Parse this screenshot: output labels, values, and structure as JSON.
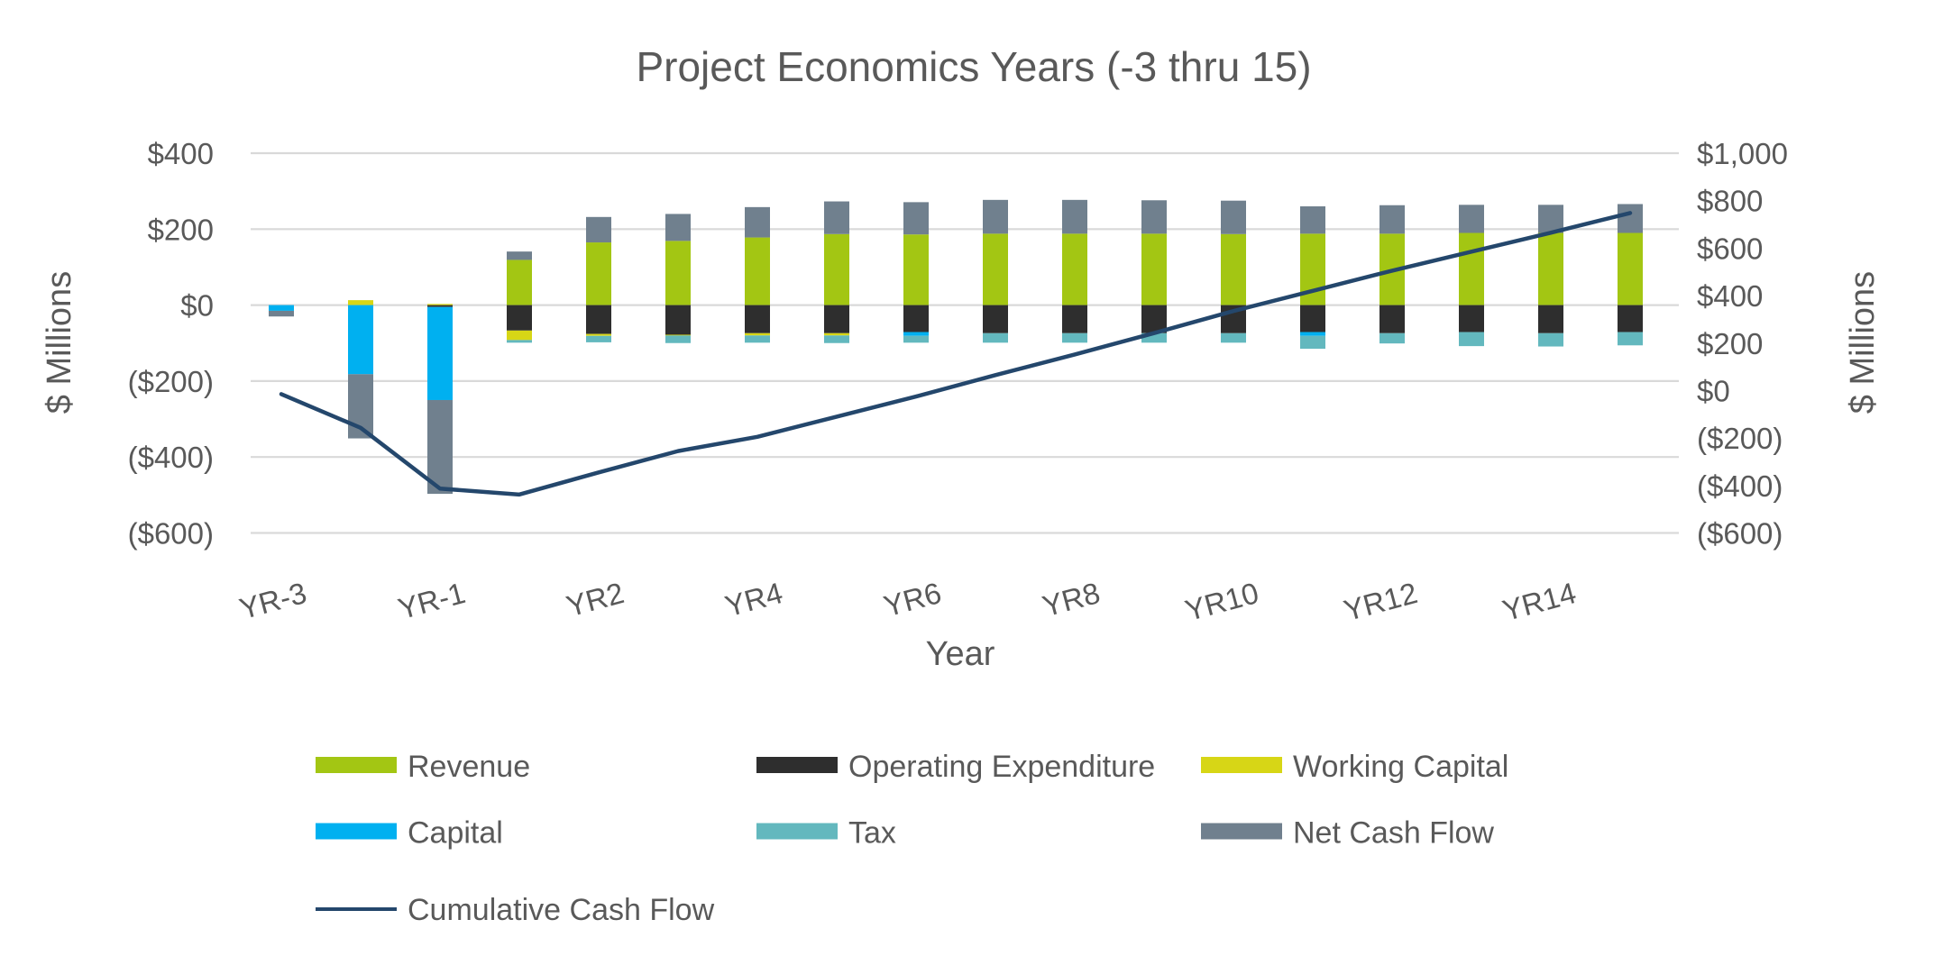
{
  "title": "Project Economics Years (-3 thru 15)",
  "axes": {
    "left_title": "$ Millions",
    "right_title": "$ Millions",
    "x_title": "Year",
    "left_ticks": [
      "$400",
      "$200",
      "$0",
      "($200)",
      "($400)",
      "($600)"
    ],
    "left_tick_values": [
      400,
      200,
      0,
      -200,
      -400,
      -600
    ],
    "left_range": [
      -600,
      400
    ],
    "right_ticks": [
      "$1,000",
      "$800",
      "$600",
      "$400",
      "$200",
      "$0",
      "($200)",
      "($400)",
      "($600)"
    ],
    "right_tick_values": [
      1000,
      800,
      600,
      400,
      200,
      0,
      -200,
      -400,
      -600
    ],
    "right_range": [
      -600,
      1000
    ],
    "grid_on": true,
    "gridline_color": "#D9D9D9",
    "text_color": "#595959"
  },
  "chart_data": {
    "type": "bar",
    "subtype": "stacked-bar-with-line-combo",
    "title": "Project Economics Years (-3 thru 15)",
    "xlabel": "Year",
    "ylabel_left": "$ Millions",
    "ylabel_right": "$ Millions",
    "ylim_left": [
      -600,
      400
    ],
    "ylim_right": [
      -600,
      1000
    ],
    "legend_position": "bottom",
    "categories": [
      "YR-3",
      "YR-2",
      "YR-1",
      "YR1",
      "YR2",
      "YR3",
      "YR4",
      "YR5",
      "YR6",
      "YR7",
      "YR8",
      "YR9",
      "YR10",
      "YR11",
      "YR12",
      "YR13",
      "YR14",
      "YR15"
    ],
    "shown_x_labels": [
      "YR-3",
      "YR-1",
      "YR2",
      "YR4",
      "YR6",
      "YR8",
      "YR10",
      "YR12",
      "YR14"
    ],
    "shown_x_label_indices": [
      0,
      2,
      4,
      6,
      8,
      10,
      12,
      14,
      16
    ],
    "series": [
      {
        "name": "Revenue",
        "type": "bar",
        "color": "#A3C613",
        "values": [
          0,
          0,
          0,
          119,
          165,
          169,
          178,
          187,
          186,
          188,
          188,
          188,
          187,
          188,
          188,
          190,
          190,
          190
        ]
      },
      {
        "name": "Operating Expenditure",
        "type": "bar",
        "color": "#2E2E2E",
        "values": [
          0,
          0,
          -5,
          -67,
          -76,
          -78,
          -74,
          -74,
          -71,
          -74,
          -74,
          -74,
          -74,
          -71,
          -74,
          -71,
          -74,
          -71
        ]
      },
      {
        "name": "Working Capital",
        "type": "bar",
        "color": "#D7D616",
        "values": [
          0,
          13,
          3,
          -25,
          -5,
          -2,
          -6,
          -6,
          0,
          0,
          0,
          0,
          0,
          0,
          0,
          0,
          0,
          0
        ]
      },
      {
        "name": "Capital",
        "type": "bar",
        "color": "#00B0F0",
        "values": [
          -15,
          -182,
          -245,
          0,
          0,
          0,
          0,
          0,
          -10,
          0,
          0,
          0,
          0,
          -10,
          0,
          0,
          0,
          0
        ]
      },
      {
        "name": "Tax",
        "type": "bar",
        "color": "#63B8BE",
        "values": [
          0,
          0,
          0,
          -7,
          -17,
          -20,
          -19,
          -20,
          -18,
          -25,
          -25,
          -25,
          -25,
          -34,
          -27,
          -37,
          -35,
          -35
        ]
      },
      {
        "name": "Net Cash Flow",
        "type": "bar",
        "color": "#70808E",
        "values": [
          -15,
          -169,
          -247,
          22,
          67,
          71,
          80,
          86,
          85,
          89,
          89,
          88,
          88,
          72,
          75,
          74,
          74,
          76
        ]
      },
      {
        "name": "Cumulative Cash Flow",
        "type": "line",
        "axis": "right",
        "color": "#24476C",
        "values": [
          -15,
          -157,
          -413,
          -438,
          -345,
          -255,
          -195,
          -110,
          -25,
          65,
          152,
          242,
          335,
          420,
          505,
          585,
          665,
          748
        ]
      }
    ]
  },
  "legend": {
    "rows": [
      [
        "Revenue",
        "Operating Expenditure",
        "Working Capital"
      ],
      [
        "Capital",
        "Tax",
        "Net Cash Flow"
      ],
      [
        "Cumulative Cash Flow"
      ]
    ]
  }
}
